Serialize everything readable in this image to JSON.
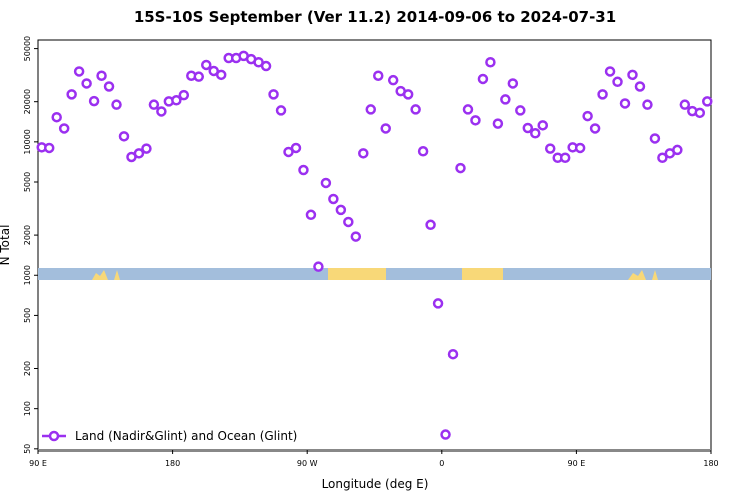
{
  "chart_data": {
    "type": "scatter",
    "title": "15S-10S September (Ver 11.2)   2014-09-06 to 2024-07-31",
    "x_label": "Longitude (deg E)",
    "y_label": "N Total",
    "log_y": true,
    "xlim": [
      90,
      540
    ],
    "ylim": [
      49,
      58000
    ],
    "xticks": [
      {
        "value": 90,
        "label": "90 E"
      },
      180,
      {
        "value": 270,
        "label": "90 W"
      },
      {
        "value": 360,
        "label": "0"
      },
      {
        "value": 450,
        "label": "90 E"
      },
      {
        "value": 540,
        "label": "180"
      }
    ],
    "yticks": [
      50,
      100,
      200,
      500,
      1000,
      2000,
      5000,
      10000,
      20000,
      50000
    ],
    "legend": "bottom-left",
    "series": [
      {
        "name": "Land (Nadir&Glint) and Ocean (Glint)",
        "color": "#9b30f0",
        "x": [
          92.5,
          97.5,
          102.5,
          107.5,
          112.5,
          117.5,
          122.5,
          127.5,
          132.5,
          137.5,
          142.5,
          147.5,
          152.5,
          157.5,
          162.5,
          167.5,
          172.5,
          177.5,
          182.5,
          187.5,
          192.5,
          197.5,
          202.5,
          207.5,
          212.5,
          217.5,
          222.5,
          227.5,
          232.5,
          237.5,
          242.5,
          247.5,
          252.5,
          257.5,
          262.5,
          267.5,
          272.5,
          277.5,
          282.5,
          287.5,
          292.5,
          297.5,
          302.5,
          307.5,
          312.5,
          317.5,
          322.5,
          327.5,
          332.5,
          337.5,
          342.5,
          347.5,
          352.5,
          357.5,
          362.5,
          367.5,
          372.5,
          377.5,
          382.5,
          387.5,
          392.5,
          397.5,
          402.5,
          407.5,
          412.5,
          417.5,
          422.5,
          427.5,
          432.5,
          437.5,
          442.5,
          447.5,
          452.5,
          457.5,
          462.5,
          467.5,
          472.5,
          477.5,
          482.5,
          487.5,
          492.5,
          497.5,
          502.5,
          507.5,
          512.5,
          517.5,
          522.5,
          527.5,
          532.5,
          537.5
        ],
        "values": [
          9100,
          9000,
          15300,
          12600,
          22700,
          33700,
          27400,
          20200,
          31300,
          26000,
          19000,
          11000,
          7700,
          8200,
          8900,
          19000,
          16900,
          20100,
          20500,
          22400,
          31300,
          30800,
          37700,
          34000,
          31800,
          42500,
          42500,
          44100,
          41700,
          39500,
          37000,
          22700,
          17200,
          8400,
          9000,
          6150,
          2840,
          1160,
          4920,
          3730,
          3090,
          2510,
          1950,
          8200,
          17500,
          31300,
          12600,
          29000,
          24000,
          22700,
          17500,
          8500,
          2390,
          615,
          64,
          256,
          6360,
          17500,
          14500,
          29600,
          39500,
          13700,
          20800,
          27400,
          17200,
          12700,
          11600,
          13300,
          8900,
          7600,
          7600,
          9100,
          9000,
          15600,
          12600,
          22700,
          33700,
          28200,
          19400,
          31800,
          26000,
          19000,
          10600,
          7600,
          8200,
          8700,
          19000,
          17000,
          16500,
          20100
        ]
      }
    ]
  }
}
